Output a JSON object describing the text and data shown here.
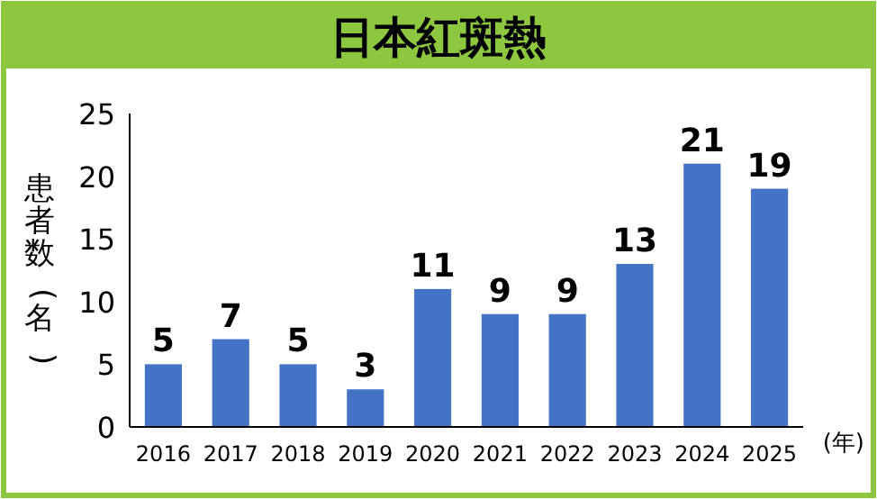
{
  "chart_data": {
    "type": "bar",
    "title": "日本紅斑熱",
    "ylabel": "患者数(名)",
    "xlabel": "(年)",
    "categories": [
      "2016",
      "2017",
      "2018",
      "2019",
      "2020",
      "2021",
      "2022",
      "2023",
      "2024",
      "2025"
    ],
    "values": [
      5,
      7,
      5,
      3,
      11,
      9,
      9,
      13,
      21,
      19
    ],
    "color": "#4472c4",
    "ylim": [
      0,
      25
    ],
    "yticks": [
      0,
      5,
      10,
      15,
      20,
      25
    ],
    "data_labels": true,
    "grid": false
  }
}
